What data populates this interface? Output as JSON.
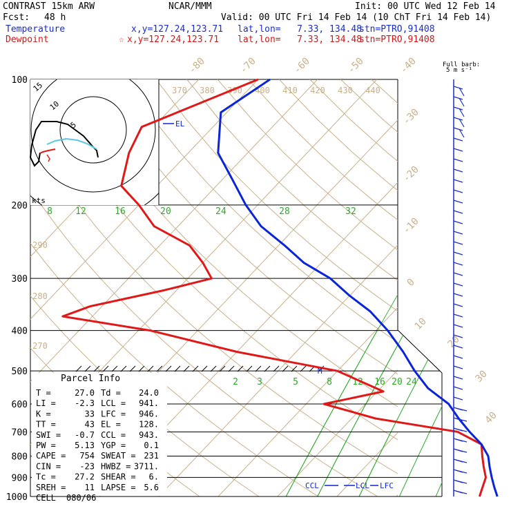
{
  "header": {
    "model": "CONTRAST 15km ARW",
    "center": "NCAR/MMM",
    "init": "Init: 00 UTC Wed 12 Feb 14",
    "fcst_label": "Fcst:",
    "fcst_value": "48 h",
    "valid": "Valid: 00 UTC Fri 14 Feb 14 (10 ChT Fri 14 Feb 14)",
    "temp_line": {
      "label": "Temperature",
      "xy": "x,y=127.24,123.71",
      "latlon": "lat,lon=   7.33, 134.48",
      "stn": "stn=PTRO,91408"
    },
    "dew_line": {
      "label": "Dewpoint",
      "xy": "x,y=127.24,123.71",
      "latlon": "lat,lon=   7.33, 134.48",
      "stn": "stn=PTRO,91408"
    }
  },
  "colors": {
    "temperature": "#0a24d8",
    "dewpoint": "#e01818",
    "isotherm": "#c8b08a",
    "mixing_ratio": "#2ea82e",
    "theta_e_label": "#c8b08a",
    "hodo_black": "#000000",
    "hodo_cyan": "#5cc8e0",
    "header_blue": "#1a2ccc",
    "header_red": "#d01818",
    "wind_barb": "#1a2ccc"
  },
  "chart_data": {
    "type": "line",
    "title": "",
    "ylabel": "",
    "xlabel": "",
    "pressure_levels": [
      100,
      200,
      300,
      400,
      500,
      600,
      700,
      800,
      900,
      1000
    ],
    "isotherm_labels": [
      "-80",
      "-70",
      "-60",
      "-50",
      "-40",
      "-30",
      "-20",
      "-10",
      "0",
      "10",
      "20",
      "30",
      "40"
    ],
    "theta_labels_top": [
      "370",
      "380",
      "390",
      "400",
      "410",
      "420",
      "430",
      "440"
    ],
    "theta_labels_side": [
      "290",
      "280",
      "270"
    ],
    "mixing_ratio_labels_200": [
      "8",
      "12",
      "16",
      "20",
      "24",
      "28",
      "32"
    ],
    "mixing_ratio_labels_500": [
      "2",
      "3",
      "5",
      "8",
      "12",
      "16",
      "20",
      "24"
    ],
    "series": [
      {
        "name": "Temperature",
        "x": [
          -78,
          -81,
          -75,
          -68,
          -62,
          -56,
          -49,
          -43,
          -36,
          -30,
          -24,
          -18,
          -12,
          -7,
          -2,
          4,
          8,
          12,
          16,
          19,
          21,
          23,
          25,
          27
        ],
        "y": [
          100,
          120,
          150,
          175,
          200,
          225,
          250,
          275,
          300,
          330,
          360,
          400,
          450,
          500,
          550,
          600,
          650,
          700,
          750,
          800,
          850,
          900,
          950,
          1000
        ]
      },
      {
        "name": "Dewpoint",
        "x": [
          -80,
          -92,
          -90,
          -86,
          -80,
          -74,
          -65,
          -60,
          -56,
          -62,
          -72,
          -75,
          -58,
          -40,
          -20,
          -9,
          -17,
          -6,
          10,
          16,
          18,
          20,
          22,
          24
        ],
        "y": [
          100,
          130,
          150,
          180,
          200,
          225,
          250,
          275,
          300,
          320,
          350,
          370,
          400,
          450,
          500,
          560,
          600,
          650,
          700,
          750,
          800,
          850,
          900,
          1000
        ]
      }
    ],
    "markers": [
      "EL",
      "M",
      "CCL",
      "LCL",
      "LFC"
    ]
  },
  "parcel_info": {
    "title": "Parcel Info",
    "rows": [
      {
        "l1": "T",
        "v1": "27.0",
        "l2": "Td",
        "v2": "24.0"
      },
      {
        "l1": "LI",
        "v1": "-2.3",
        "l2": "LCL",
        "v2": "941."
      },
      {
        "l1": "K",
        "v1": "33",
        "l2": "LFC",
        "v2": "946."
      },
      {
        "l1": "TT",
        "v1": "43",
        "l2": "EL",
        "v2": "128."
      },
      {
        "l1": "SWI",
        "v1": "-0.7",
        "l2": "CCL",
        "v2": "943."
      },
      {
        "l1": "PW",
        "v1": "5.13",
        "l2": "YGP",
        "v2": "0.1"
      },
      {
        "l1": "CAPE",
        "v1": "754",
        "l2": "SWEAT",
        "v2": "231"
      },
      {
        "l1": "CIN",
        "v1": "-23",
        "l2": "HWBZ",
        "v2": "3711."
      },
      {
        "l1": "Tc",
        "v1": "27.2",
        "l2": "SHEAR",
        "v2": "6."
      },
      {
        "l1": "SREH",
        "v1": "11",
        "l2": "LAPSE",
        "v2": "5.6"
      },
      {
        "l1": "CELL",
        "v1": "080/06",
        "l2": "",
        "v2": ""
      }
    ]
  },
  "hodograph": {
    "ring_labels": [
      "15",
      "10",
      "5"
    ],
    "units": "kts"
  },
  "wind_barbs": {
    "title": "Full barb:",
    "subtitle": "5 m s⁻¹"
  }
}
